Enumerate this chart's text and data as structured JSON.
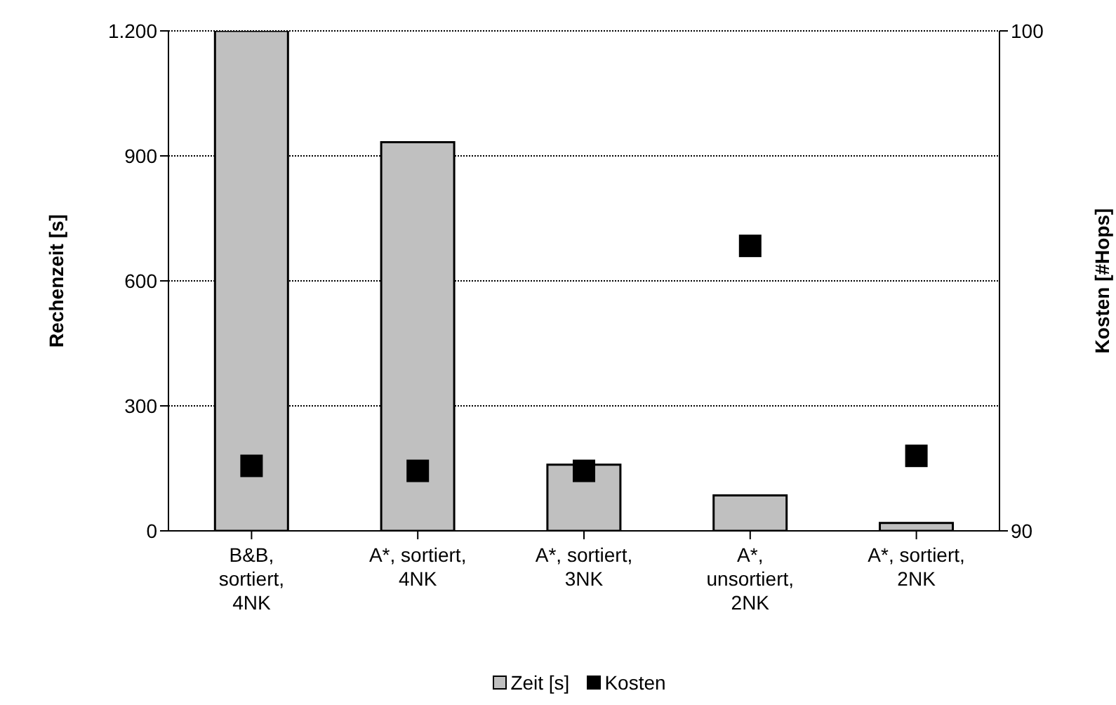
{
  "chart_data": {
    "type": "bar",
    "categories": [
      "B&B,\nsortiert,\n4NK",
      "A*, sortiert,\n4NK",
      "A*, sortiert,\n3NK",
      "A*,\nunsortiert,\n2NK",
      "A*, sortiert,\n2NK"
    ],
    "series": [
      {
        "name": "Zeit [s]",
        "color": "#c0c0c0",
        "values": [
          1200,
          933,
          159,
          85,
          19
        ]
      },
      {
        "name": "Kosten",
        "type": "scatter",
        "axis": "y2",
        "color": "#000000",
        "values": [
          91.3,
          91.2,
          91.2,
          95.7,
          91.5
        ]
      }
    ],
    "ylabel": "Rechenzeit [s]",
    "y2label": "Kosten [#Hops]",
    "ylim": [
      0,
      1200
    ],
    "yticks": [
      0,
      300,
      600,
      900,
      {
        "value": 1200,
        "label": "1.200"
      }
    ],
    "y2lim": [
      90,
      100
    ],
    "y2ticks": [
      90,
      100
    ],
    "grid": "y",
    "legend": "bottom",
    "marker": "square"
  }
}
